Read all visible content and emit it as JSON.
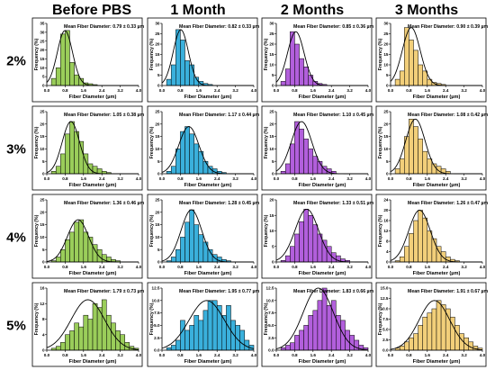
{
  "figure": {
    "columns": [
      "Before PBS",
      "1 Month",
      "2 Months",
      "3 Months"
    ],
    "rows": [
      "2%",
      "3%",
      "4%",
      "5%"
    ],
    "series_colors": [
      "#9ACD5A",
      "#3AB0DC",
      "#B25FDC",
      "#F2CF7A"
    ]
  },
  "chart_data": [
    {
      "type": "bar",
      "panel": "2% Before PBS",
      "annotation": "Mean Fiber Diameter: 0.79 ± 0.33 µm",
      "xlabel": "Fiber Diameter (µm)",
      "ylabel": "Frequency (%)",
      "xlim": [
        0,
        4
      ],
      "ylim": [
        0,
        35
      ],
      "xticks": [
        "0.0",
        "0.8",
        "1.6",
        "2.4",
        "3.2",
        "4.0"
      ],
      "yticks": [
        "0",
        "5",
        "10",
        "15",
        "20",
        "25",
        "30",
        "35"
      ],
      "bin_start": 0.2,
      "bin_width": 0.2,
      "values": [
        4,
        10,
        29,
        31,
        13,
        6,
        4,
        1.5,
        1,
        0.5
      ],
      "fit": {
        "mean": 0.79,
        "sd": 0.33
      },
      "color": "#9ACD5A"
    },
    {
      "type": "bar",
      "panel": "2% 1 Month",
      "annotation": "Mean Fiber Diameter: 0.82 ± 0.33 µm",
      "xlabel": "Fiber Diameter (µm)",
      "ylabel": "Frequency (%)",
      "xlim": [
        0,
        4
      ],
      "ylim": [
        0,
        30
      ],
      "xticks": [
        "0.0",
        "0.8",
        "1.6",
        "2.4",
        "3.2",
        "4.0"
      ],
      "yticks": [
        "0",
        "5",
        "10",
        "15",
        "20",
        "25",
        "30"
      ],
      "bin_start": 0.2,
      "bin_width": 0.2,
      "values": [
        3,
        10,
        27,
        22,
        12,
        10,
        4,
        2,
        1,
        0.5
      ],
      "fit": {
        "mean": 0.82,
        "sd": 0.33
      },
      "color": "#3AB0DC"
    },
    {
      "type": "bar",
      "panel": "2% 2 Months",
      "annotation": "Mean Fiber Diameter: 0.85 ± 0.36 µm",
      "xlabel": "Fiber Diameter (µm)",
      "ylabel": "Frequency (%)",
      "xlim": [
        0,
        4
      ],
      "ylim": [
        0,
        30
      ],
      "xticks": [
        "0.0",
        "0.8",
        "1.6",
        "2.4",
        "3.2",
        "4.0"
      ],
      "yticks": [
        "0",
        "5",
        "10",
        "15",
        "20",
        "25",
        "30"
      ],
      "bin_start": 0.2,
      "bin_width": 0.2,
      "values": [
        2,
        8,
        26,
        20,
        13,
        9,
        5,
        2,
        1,
        0.5
      ],
      "fit": {
        "mean": 0.85,
        "sd": 0.36
      },
      "color": "#B25FDC"
    },
    {
      "type": "bar",
      "panel": "2% 3 Months",
      "annotation": "Mean Fiber Diameter: 0.90 ± 0.39 µm",
      "xlabel": "Fiber Diameter (µm)",
      "ylabel": "Frequency (%)",
      "xlim": [
        0,
        4
      ],
      "ylim": [
        0,
        30
      ],
      "xticks": [
        "0.0",
        "0.8",
        "1.6",
        "2.4",
        "3.2",
        "4.0"
      ],
      "yticks": [
        "0",
        "5",
        "10",
        "15",
        "20",
        "25",
        "30"
      ],
      "bin_start": 0.2,
      "bin_width": 0.2,
      "values": [
        3,
        7,
        28,
        22,
        17,
        10,
        7,
        3,
        1.5,
        1,
        0.5
      ],
      "fit": {
        "mean": 0.9,
        "sd": 0.39
      },
      "color": "#F2CF7A"
    },
    {
      "type": "bar",
      "panel": "3% Before PBS",
      "annotation": "Mean Fiber Diameter: 1.05 ± 0.38 µm",
      "xlabel": "Fiber Diameter (µm)",
      "ylabel": "Frequency (%)",
      "xlim": [
        0,
        4
      ],
      "ylim": [
        0,
        25
      ],
      "xticks": [
        "0.0",
        "0.8",
        "1.6",
        "2.4",
        "3.2",
        "4.0"
      ],
      "yticks": [
        "0",
        "5",
        "10",
        "15",
        "20",
        "25"
      ],
      "bin_start": 0.2,
      "bin_width": 0.2,
      "values": [
        1,
        3,
        8,
        16,
        21,
        17,
        13,
        8,
        4,
        3,
        2,
        1,
        0.5
      ],
      "fit": {
        "mean": 1.05,
        "sd": 0.38
      },
      "color": "#9ACD5A"
    },
    {
      "type": "bar",
      "panel": "3% 1 Month",
      "annotation": "Mean Fiber Diameter: 1.17 ± 0.44 µm",
      "xlabel": "Fiber Diameter (µm)",
      "ylabel": "Frequency (%)",
      "xlim": [
        0,
        4
      ],
      "ylim": [
        0,
        25
      ],
      "xticks": [
        "0.0",
        "0.8",
        "1.6",
        "2.4",
        "3.2",
        "4.0"
      ],
      "yticks": [
        "0",
        "5",
        "10",
        "15",
        "20",
        "25"
      ],
      "bin_start": 0.2,
      "bin_width": 0.2,
      "values": [
        1,
        3,
        10,
        17,
        19,
        16,
        12,
        9,
        5,
        3,
        2,
        1,
        0.5
      ],
      "fit": {
        "mean": 1.17,
        "sd": 0.44
      },
      "color": "#3AB0DC"
    },
    {
      "type": "bar",
      "panel": "3% 2 Months",
      "annotation": "Mean Fiber Diameter: 1.10 ± 0.45 µm",
      "xlabel": "Fiber Diameter (µm)",
      "ylabel": "Frequency (%)",
      "xlim": [
        0,
        4
      ],
      "ylim": [
        0,
        25
      ],
      "xticks": [
        "0.0",
        "0.8",
        "1.6",
        "2.4",
        "3.2",
        "4.0"
      ],
      "yticks": [
        "0",
        "5",
        "10",
        "15",
        "20",
        "25"
      ],
      "bin_start": 0.2,
      "bin_width": 0.2,
      "values": [
        1,
        4,
        12,
        21,
        18,
        14,
        10,
        7,
        5,
        3,
        2,
        1
      ],
      "fit": {
        "mean": 1.1,
        "sd": 0.45
      },
      "color": "#B25FDC"
    },
    {
      "type": "bar",
      "panel": "3% 3 Months",
      "annotation": "Mean Fiber Diameter: 1.08 ± 0.42 µm",
      "xlabel": "Fiber Diameter (µm)",
      "ylabel": "Frequency (%)",
      "xlim": [
        0,
        4
      ],
      "ylim": [
        0,
        25
      ],
      "xticks": [
        "0.0",
        "0.8",
        "1.6",
        "2.4",
        "3.2",
        "4.0"
      ],
      "yticks": [
        "0",
        "5",
        "10",
        "15",
        "20",
        "25"
      ],
      "bin_start": 0.2,
      "bin_width": 0.2,
      "values": [
        2,
        6,
        15,
        22,
        19,
        14,
        9,
        6,
        4,
        3,
        2,
        1
      ],
      "fit": {
        "mean": 1.08,
        "sd": 0.42
      },
      "color": "#F2CF7A"
    },
    {
      "type": "bar",
      "panel": "4% Before PBS",
      "annotation": "Mean Fiber Diameter: 1.36 ± 0.46 µm",
      "xlabel": "Fiber Diameter (µm)",
      "ylabel": "Frequency (%)",
      "xlim": [
        0,
        4
      ],
      "ylim": [
        0,
        25
      ],
      "xticks": [
        "0.0",
        "0.8",
        "1.6",
        "2.4",
        "3.2",
        "4.0"
      ],
      "yticks": [
        "0",
        "5",
        "10",
        "15",
        "20",
        "25"
      ],
      "bin_start": 0.2,
      "bin_width": 0.2,
      "values": [
        0.5,
        2,
        5,
        9,
        12,
        16,
        17,
        12,
        10,
        7,
        5,
        3,
        2,
        1,
        0.5
      ],
      "fit": {
        "mean": 1.36,
        "sd": 0.46
      },
      "color": "#9ACD5A"
    },
    {
      "type": "bar",
      "panel": "4% 1 Month",
      "annotation": "Mean Fiber Diameter: 1.28 ± 0.45 µm",
      "xlabel": "Fiber Diameter (µm)",
      "ylabel": "Frequency (%)",
      "xlim": [
        0,
        4
      ],
      "ylim": [
        0,
        25
      ],
      "xticks": [
        "0.0",
        "0.8",
        "1.6",
        "2.4",
        "3.2",
        "4.0"
      ],
      "yticks": [
        "0",
        "5",
        "10",
        "15",
        "20",
        "25"
      ],
      "bin_start": 0.2,
      "bin_width": 0.2,
      "values": [
        0.5,
        2,
        5,
        10,
        16,
        21,
        15,
        11,
        8,
        5,
        3,
        2,
        1,
        0.5
      ],
      "fit": {
        "mean": 1.28,
        "sd": 0.45
      },
      "color": "#3AB0DC"
    },
    {
      "type": "bar",
      "panel": "4% 2 Months",
      "annotation": "Mean Fiber Diameter: 1.33 ± 0.51 µm",
      "xlabel": "Fiber Diameter (µm)",
      "ylabel": "Frequency (%)",
      "xlim": [
        0,
        4
      ],
      "ylim": [
        0,
        20
      ],
      "xticks": [
        "0.0",
        "0.8",
        "1.6",
        "2.4",
        "3.2",
        "4.0"
      ],
      "yticks": [
        "0",
        "5",
        "10",
        "15",
        "20"
      ],
      "bin_start": 0.2,
      "bin_width": 0.2,
      "values": [
        0.5,
        2,
        5,
        9,
        13,
        17,
        15,
        12,
        9,
        7,
        5,
        3,
        2,
        1,
        0.5
      ],
      "fit": {
        "mean": 1.33,
        "sd": 0.51
      },
      "color": "#B25FDC"
    },
    {
      "type": "bar",
      "panel": "4% 3 Months",
      "annotation": "Mean Fiber Diameter: 1.26 ± 0.47 µm",
      "xlabel": "Fiber Diameter (µm)",
      "ylabel": "Frequency (%)",
      "xlim": [
        0,
        4
      ],
      "ylim": [
        0,
        24
      ],
      "xticks": [
        "0.0",
        "0.8",
        "1.6",
        "2.4",
        "3.2",
        "4.0"
      ],
      "yticks": [
        "0",
        "4",
        "8",
        "12",
        "16",
        "20",
        "24"
      ],
      "bin_start": 0.2,
      "bin_width": 0.2,
      "values": [
        0.5,
        2,
        6,
        11,
        16,
        20,
        17,
        12,
        9,
        6,
        4,
        2,
        1,
        0.5
      ],
      "fit": {
        "mean": 1.26,
        "sd": 0.47
      },
      "color": "#F2CF7A"
    },
    {
      "type": "bar",
      "panel": "5% Before PBS",
      "annotation": "Mean Fiber Diameter: 1.79 ± 0.73 µm",
      "xlabel": "Fiber Diameter (µm)",
      "ylabel": "Frequency (%)",
      "xlim": [
        0,
        4
      ],
      "ylim": [
        0,
        16
      ],
      "xticks": [
        "0.0",
        "0.8",
        "1.6",
        "2.4",
        "3.2",
        "4.0"
      ],
      "yticks": [
        "0",
        "4",
        "8",
        "12",
        "16"
      ],
      "bin_start": 0.2,
      "bin_width": 0.2,
      "values": [
        0.5,
        1,
        2,
        4,
        5,
        7,
        6,
        9,
        8,
        12,
        11,
        13,
        9,
        7,
        5,
        4,
        2,
        1,
        0.5
      ],
      "fit": {
        "mean": 1.79,
        "sd": 0.73
      },
      "color": "#9ACD5A"
    },
    {
      "type": "bar",
      "panel": "5% 1 Month",
      "annotation": "Mean Fiber Diameter: 1.95 ± 0.77 µm",
      "xlabel": "Fiber Diameter (µm)",
      "ylabel": "Frequency (%)",
      "xlim": [
        0,
        4
      ],
      "ylim": [
        0,
        12.5
      ],
      "xticks": [
        "0.0",
        "0.8",
        "1.6",
        "2.4",
        "3.2",
        "4.0"
      ],
      "yticks": [
        "0.0",
        "2.5",
        "5.0",
        "7.5",
        "10.0",
        "12.5"
      ],
      "bin_start": 0.2,
      "bin_width": 0.2,
      "values": [
        0.5,
        1,
        2,
        6,
        4,
        5,
        7,
        6,
        8,
        10,
        10,
        9,
        7,
        9,
        6,
        5,
        4,
        2,
        1,
        0.5
      ],
      "fit": {
        "mean": 1.95,
        "sd": 0.77
      },
      "color": "#3AB0DC"
    },
    {
      "type": "bar",
      "panel": "5% 2 Months",
      "annotation": "Mean Fiber Diameter: 1.83 ± 0.66 µm",
      "xlabel": "Fiber Diameter (µm)",
      "ylabel": "Frequency (%)",
      "xlim": [
        0,
        4
      ],
      "ylim": [
        0,
        12.5
      ],
      "xticks": [
        "0.0",
        "0.8",
        "1.6",
        "2.4",
        "3.2",
        "4.0"
      ],
      "yticks": [
        "0.0",
        "2.5",
        "5.0",
        "7.5",
        "10.0",
        "12.5"
      ],
      "bin_start": 0.2,
      "bin_width": 0.2,
      "values": [
        0.5,
        1,
        1.5,
        3,
        4,
        5,
        7,
        8,
        10,
        12.5,
        9,
        10,
        7,
        6,
        4,
        3,
        2,
        1,
        0.5
      ],
      "fit": {
        "mean": 1.83,
        "sd": 0.66
      },
      "color": "#B25FDC"
    },
    {
      "type": "bar",
      "panel": "5% 3 Months",
      "annotation": "Mean Fiber Diameter: 1.91 ± 0.67 µm",
      "xlabel": "Fiber Diameter (µm)",
      "ylabel": "Frequency (%)",
      "xlim": [
        0,
        4
      ],
      "ylim": [
        0,
        15
      ],
      "xticks": [
        "0.0",
        "0.8",
        "1.6",
        "2.4",
        "3.2",
        "4.0"
      ],
      "yticks": [
        "0.0",
        "2.5",
        "5.0",
        "7.5",
        "10.0",
        "12.5",
        "15.0"
      ],
      "bin_start": 0.2,
      "bin_width": 0.2,
      "values": [
        0.5,
        1,
        2,
        3,
        4,
        6,
        8,
        9,
        10,
        12,
        11,
        10,
        8,
        6,
        4,
        3,
        2,
        1,
        0.5
      ],
      "fit": {
        "mean": 1.91,
        "sd": 0.67
      },
      "color": "#F2CF7A"
    }
  ]
}
